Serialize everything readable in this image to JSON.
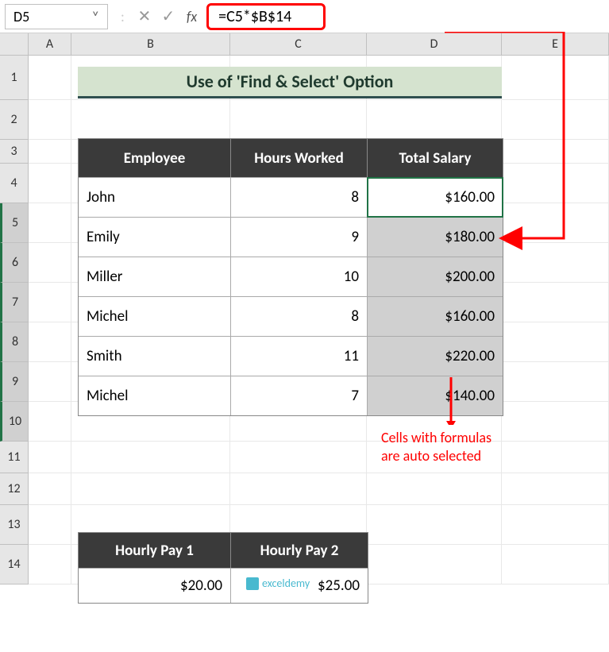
{
  "formula_bar": {
    "cell_ref": "D5",
    "dropdown_glyph": "˅",
    "separator": ":",
    "cancel_glyph": "✕",
    "accept_glyph": "✓",
    "fx_label": "fx",
    "formula": "=C5*$B$14"
  },
  "columns": [
    "A",
    "B",
    "C",
    "D",
    "E"
  ],
  "rows": [
    "1",
    "2",
    "3",
    "4",
    "5",
    "6",
    "7",
    "8",
    "9",
    "10",
    "11",
    "12",
    "13",
    "14"
  ],
  "title": "Use of 'Find & Select' Option",
  "employee_table": {
    "headers": [
      "Employee",
      "Hours Worked",
      "Total Salary"
    ],
    "rows": [
      {
        "name": "John",
        "hours": "8",
        "salary": "$160.00",
        "active": true
      },
      {
        "name": "Emily",
        "hours": "9",
        "salary": "$180.00",
        "active": false
      },
      {
        "name": "Miller",
        "hours": "10",
        "salary": "$200.00",
        "active": false
      },
      {
        "name": "Michel",
        "hours": "8",
        "salary": "$160.00",
        "active": false
      },
      {
        "name": "Smith",
        "hours": "11",
        "salary": "$220.00",
        "active": false
      },
      {
        "name": "Michel",
        "hours": "7",
        "salary": "$140.00",
        "active": false
      }
    ]
  },
  "pay_table": {
    "headers": [
      "Hourly Pay 1",
      "Hourly Pay 2"
    ],
    "values": [
      "$20.00",
      "$25.00"
    ]
  },
  "annotation": {
    "line1": "Cells with formulas",
    "line2": "are auto selected"
  },
  "watermark": "exceldemy",
  "colors": {
    "highlight_red": "#ff0000",
    "excel_green": "#217346",
    "header_dark": "#3a3a3a",
    "title_bg": "#d5e3cf",
    "title_border": "#2f4f4f",
    "selected_fill": "#d0d0d0"
  }
}
